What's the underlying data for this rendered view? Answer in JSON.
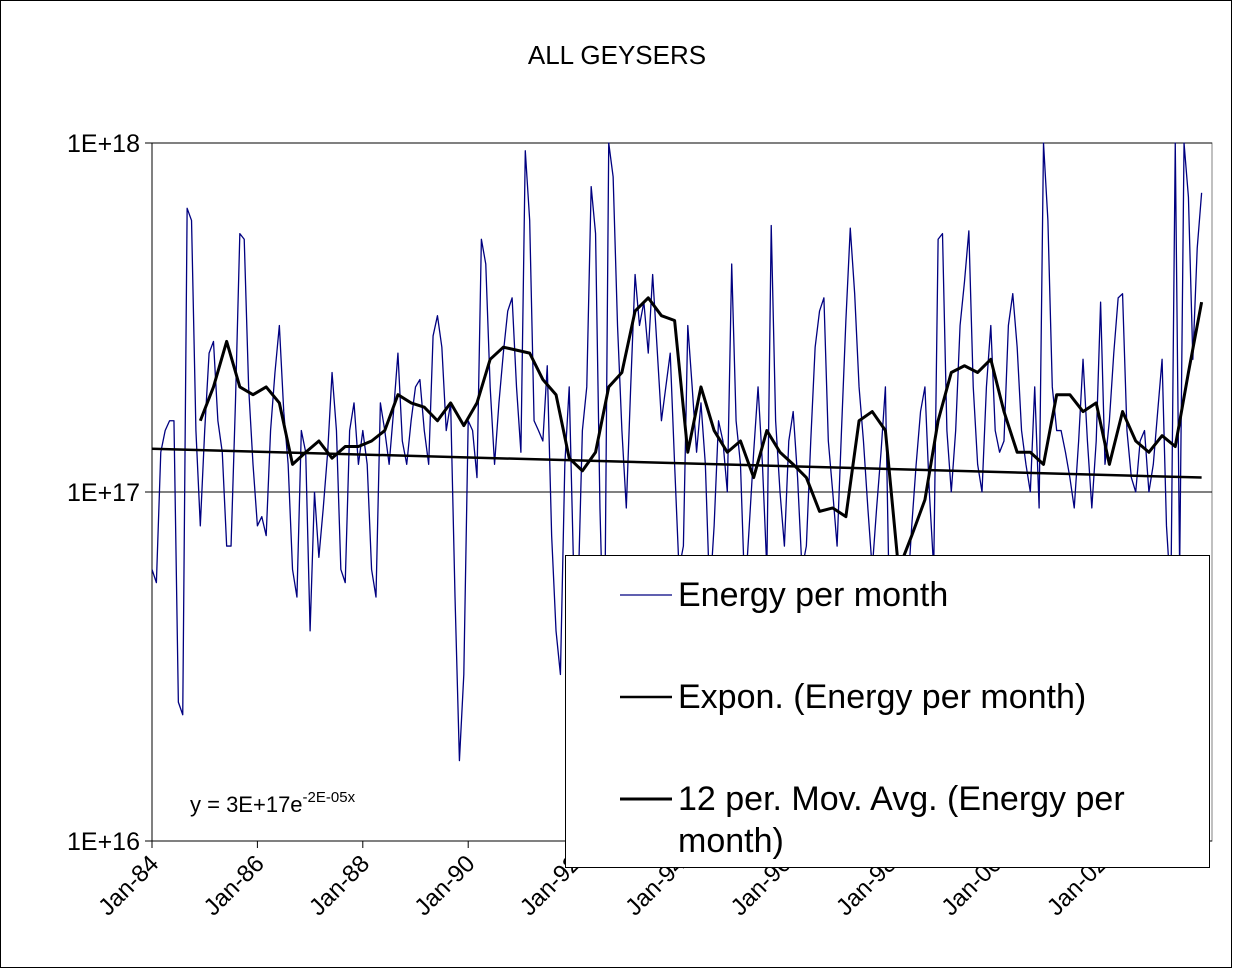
{
  "chart_data": {
    "type": "line",
    "title": "ALL GEYSERS",
    "log_scale": true,
    "grid": true,
    "ylim": [
      1e+16,
      1e+18
    ],
    "yticks": [
      {
        "value": 1e+16,
        "label": "1E+16"
      },
      {
        "value": 1e+17,
        "label": "1E+17"
      },
      {
        "value": 1e+18,
        "label": "1E+18"
      }
    ],
    "xlim": [
      "1984-01",
      "2004-01"
    ],
    "xticks": [
      {
        "value": "1984-01",
        "label": "Jan-84"
      },
      {
        "value": "1986-01",
        "label": "Jan-86"
      },
      {
        "value": "1988-01",
        "label": "Jan-88"
      },
      {
        "value": "1990-01",
        "label": "Jan-90"
      },
      {
        "value": "1992-01",
        "label": "Jan-92"
      },
      {
        "value": "1994-01",
        "label": "Jan-94"
      },
      {
        "value": "1996-01",
        "label": "Jan-96"
      },
      {
        "value": "1998-01",
        "label": "Jan-98"
      },
      {
        "value": "2000-01",
        "label": "Jan-00"
      },
      {
        "value": "2002-01",
        "label": "Jan-02"
      }
    ],
    "equation": {
      "base": "y = 3E+17e",
      "exponent": "-2E-05x"
    },
    "legend": "bottom-right",
    "series": [
      {
        "name": "Energy per month",
        "color": "#000080",
        "x": [
          "1984-01",
          "1984-02",
          "1984-03",
          "1984-04",
          "1984-05",
          "1984-06",
          "1984-07",
          "1984-08",
          "1984-09",
          "1984-10",
          "1984-11",
          "1984-12",
          "1985-01",
          "1985-02",
          "1985-03",
          "1985-04",
          "1985-05",
          "1985-06",
          "1985-07",
          "1985-08",
          "1985-09",
          "1985-10",
          "1985-11",
          "1985-12",
          "1986-01",
          "1986-02",
          "1986-03",
          "1986-04",
          "1986-05",
          "1986-06",
          "1986-07",
          "1986-08",
          "1986-09",
          "1986-10",
          "1986-11",
          "1986-12",
          "1987-01",
          "1987-02",
          "1987-03",
          "1987-04",
          "1987-05",
          "1987-06",
          "1987-07",
          "1987-08",
          "1987-09",
          "1987-10",
          "1987-11",
          "1987-12",
          "1988-01",
          "1988-02",
          "1988-03",
          "1988-04",
          "1988-05",
          "1988-06",
          "1988-07",
          "1988-08",
          "1988-09",
          "1988-10",
          "1988-11",
          "1988-12",
          "1989-01",
          "1989-02",
          "1989-03",
          "1989-04",
          "1989-05",
          "1989-06",
          "1989-07",
          "1989-08",
          "1989-09",
          "1989-10",
          "1989-11",
          "1989-12",
          "1990-01",
          "1990-02",
          "1990-03",
          "1990-04",
          "1990-05",
          "1990-06",
          "1990-07",
          "1990-08",
          "1990-09",
          "1990-10",
          "1990-11",
          "1990-12",
          "1991-01",
          "1991-02",
          "1991-03",
          "1991-04",
          "1991-05",
          "1991-06",
          "1991-07",
          "1991-08",
          "1991-09",
          "1991-10",
          "1991-11",
          "1991-12",
          "1992-01",
          "1992-02",
          "1992-03",
          "1992-04",
          "1992-05",
          "1992-06",
          "1992-07",
          "1992-08",
          "1992-09",
          "1992-10",
          "1992-11",
          "1992-12",
          "1993-01",
          "1993-02",
          "1993-03",
          "1993-04",
          "1993-05",
          "1993-06",
          "1993-07",
          "1993-08",
          "1993-09",
          "1993-10",
          "1993-11",
          "1993-12",
          "1994-01",
          "1994-02",
          "1994-03",
          "1994-04",
          "1994-05",
          "1994-06",
          "1994-07",
          "1994-08",
          "1994-09",
          "1994-10",
          "1994-11",
          "1994-12",
          "1995-01",
          "1995-02",
          "1995-03",
          "1995-04",
          "1995-05",
          "1995-06",
          "1995-07",
          "1995-08",
          "1995-09",
          "1995-10",
          "1995-11",
          "1995-12",
          "1996-01",
          "1996-02",
          "1996-03",
          "1996-04",
          "1996-05",
          "1996-06",
          "1996-07",
          "1996-08",
          "1996-09",
          "1996-10",
          "1996-11",
          "1996-12",
          "1997-01",
          "1997-02",
          "1997-03",
          "1997-04",
          "1997-05",
          "1997-06",
          "1997-07",
          "1997-08",
          "1997-09",
          "1997-10",
          "1997-11",
          "1997-12",
          "1998-01",
          "1998-02",
          "1998-03",
          "1998-04",
          "1998-05",
          "1998-06",
          "1998-07",
          "1998-08",
          "1998-09",
          "1998-10",
          "1998-11",
          "1998-12",
          "1999-01",
          "1999-02",
          "1999-03",
          "1999-04",
          "1999-05",
          "1999-06",
          "1999-07",
          "1999-08",
          "1999-09",
          "1999-10",
          "1999-11",
          "1999-12",
          "2000-01",
          "2000-02",
          "2000-03",
          "2000-04",
          "2000-05",
          "2000-06",
          "2000-07",
          "2000-08",
          "2000-09",
          "2000-10",
          "2000-11",
          "2000-12",
          "2001-01",
          "2001-02",
          "2001-03",
          "2001-04",
          "2001-05",
          "2001-06",
          "2001-07",
          "2001-08",
          "2001-09",
          "2001-10",
          "2001-11",
          "2001-12",
          "2002-01",
          "2002-02",
          "2002-03",
          "2002-04",
          "2002-05",
          "2002-06",
          "2002-07",
          "2002-08",
          "2002-09",
          "2002-10",
          "2002-11",
          "2002-12",
          "2003-01",
          "2003-02",
          "2003-03",
          "2003-04",
          "2003-05",
          "2003-06",
          "2003-07",
          "2003-08",
          "2003-09",
          "2003-10",
          "2003-11",
          "2003-12"
        ],
        "values": [
          6e+16,
          5.5e+16,
          1.3e+17,
          1.5e+17,
          1.6e+17,
          1.6e+17,
          2.5e+16,
          2.3e+16,
          6.5e+17,
          6e+17,
          1.5e+17,
          8e+16,
          1.5e+17,
          2.5e+17,
          2.7e+17,
          1.6e+17,
          1.3e+17,
          7e+16,
          7e+16,
          1.8e+17,
          5.5e+17,
          5.3e+17,
          2e+17,
          1.2e+17,
          8e+16,
          8.5e+16,
          7.5e+16,
          1.5e+17,
          2.2e+17,
          3e+17,
          1.7e+17,
          1.2e+17,
          6e+16,
          5e+16,
          1.5e+17,
          1.3e+17,
          4e+16,
          1e+17,
          6.5e+16,
          9e+16,
          1.3e+17,
          2.2e+17,
          1.5e+17,
          6e+16,
          5.5e+16,
          1.5e+17,
          1.8e+17,
          1.2e+17,
          1.5e+17,
          1.2e+17,
          6e+16,
          5e+16,
          1.8e+17,
          1.5e+17,
          1.2e+17,
          1.7e+17,
          2.5e+17,
          1.4e+17,
          1.2e+17,
          1.6e+17,
          2e+17,
          2.1e+17,
          1.5e+17,
          1.2e+17,
          2.8e+17,
          3.2e+17,
          2.6e+17,
          1.5e+17,
          1.8e+17,
          5e+16,
          1.7e+16,
          3e+16,
          1.6e+17,
          1.5e+17,
          1.1e+17,
          5.3e+17,
          4.5e+17,
          2e+17,
          1.2e+17,
          1.8e+17,
          2.5e+17,
          3.3e+17,
          3.6e+17,
          2e+17,
          1.3e+17,
          9.5e+17,
          6e+17,
          1.6e+17,
          1.5e+17,
          1.4e+17,
          2.3e+17,
          7.5e+16,
          4e+16,
          3e+16,
          1.2e+17,
          2e+17,
          6e+16,
          5e+16,
          1.5e+17,
          2e+17,
          7.5e+17,
          5.5e+17,
          9e+16,
          3e+16,
          1e+18,
          8e+17,
          3e+17,
          1.5e+17,
          9e+16,
          2e+17,
          4.2e+17,
          3e+17,
          3.5e+17,
          2.5e+17,
          4.2e+17,
          2.6e+17,
          1.6e+17,
          2e+17,
          2.5e+17,
          1.2e+17,
          6e+16,
          7e+16,
          3e+17,
          2e+17,
          1.3e+17,
          1.8e+17,
          1.2e+17,
          5e+16,
          8e+16,
          1.6e+17,
          1.4e+17,
          1e+17,
          4.5e+17,
          1.6e+17,
          1.2e+17,
          5e+16,
          8e+16,
          1.3e+17,
          2e+17,
          1.2e+17,
          6e+16,
          5.8e+17,
          1.6e+17,
          1e+17,
          7e+16,
          1.4e+17,
          1.7e+17,
          1.1e+17,
          6e+16,
          7e+16,
          1.4e+17,
          2.6e+17,
          3.3e+17,
          3.6e+17,
          1.4e+17,
          1e+17,
          7e+16,
          1.5e+17,
          3.1e+17,
          5.7e+17,
          3.7e+17,
          2e+17,
          1.4e+17,
          9e+16,
          6e+16,
          9e+16,
          1.3e+17,
          2e+17,
          4e+16,
          3e+16,
          4e+16,
          2.5e+16,
          5e+16,
          8e+16,
          1.2e+17,
          1.7e+17,
          2e+17,
          1e+17,
          6e+16,
          5.3e+17,
          5.5e+17,
          1.5e+17,
          1e+17,
          1.5e+17,
          3e+17,
          4e+17,
          5.6e+17,
          2e+17,
          1.2e+17,
          1e+17,
          2e+17,
          3e+17,
          1.5e+17,
          1.3e+17,
          1.4e+17,
          3e+17,
          3.7e+17,
          2.6e+17,
          1.5e+17,
          1.2e+17,
          1e+17,
          2e+17,
          9e+16,
          1e+18,
          6e+17,
          2e+17,
          1.5e+17,
          1.5e+17,
          1.3e+17,
          1.1e+17,
          9e+16,
          1.4e+17,
          2.4e+17,
          1.4e+17,
          9e+16,
          1.4e+17,
          3.5e+17,
          1.2e+17,
          1.6e+17,
          2.5e+17,
          3.6e+17,
          3.7e+17,
          1.5e+17,
          1.1e+17,
          1e+17,
          1.4e+17,
          1.5e+17,
          1e+17,
          1.2e+17,
          1.7e+17,
          2.4e+17,
          8e+16,
          5e+16,
          1e+18,
          6e+16,
          1e+18,
          7e+17,
          2.4e+17,
          5e+17,
          7.2e+17
        ]
      },
      {
        "name": "Expon. (Energy per month)",
        "color": "#000000",
        "x": [
          "1984-01",
          "2003-12"
        ],
        "values": [
          1.33e+17,
          1.1e+17
        ]
      },
      {
        "name": "12 per. Mov. Avg. (Energy per month)",
        "color": "#000000",
        "x": [
          "1984-12",
          "1985-03",
          "1985-06",
          "1985-09",
          "1985-12",
          "1986-03",
          "1986-06",
          "1986-09",
          "1986-12",
          "1987-03",
          "1987-06",
          "1987-09",
          "1987-12",
          "1988-03",
          "1988-06",
          "1988-09",
          "1988-12",
          "1989-03",
          "1989-06",
          "1989-09",
          "1989-12",
          "1990-03",
          "1990-06",
          "1990-09",
          "1990-12",
          "1991-03",
          "1991-06",
          "1991-09",
          "1991-12",
          "1992-03",
          "1992-06",
          "1992-09",
          "1992-12",
          "1993-03",
          "1993-06",
          "1993-09",
          "1993-12",
          "1994-03",
          "1994-06",
          "1994-09",
          "1994-12",
          "1995-03",
          "1995-06",
          "1995-09",
          "1995-12",
          "1996-03",
          "1996-06",
          "1996-09",
          "1996-12",
          "1997-03",
          "1997-06",
          "1997-09",
          "1997-12",
          "1998-03",
          "1998-06",
          "1998-09",
          "1998-12",
          "1999-03",
          "1999-06",
          "1999-09",
          "1999-12",
          "2000-03",
          "2000-06",
          "2000-09",
          "2000-12",
          "2001-03",
          "2001-06",
          "2001-09",
          "2001-12",
          "2002-03",
          "2002-06",
          "2002-09",
          "2002-12",
          "2003-03",
          "2003-06",
          "2003-09",
          "2003-12"
        ],
        "values": [
          1.6e+17,
          2e+17,
          2.7e+17,
          2e+17,
          1.9e+17,
          2e+17,
          1.8e+17,
          1.2e+17,
          1.3e+17,
          1.4e+17,
          1.25e+17,
          1.35e+17,
          1.35e+17,
          1.4e+17,
          1.5e+17,
          1.9e+17,
          1.8e+17,
          1.75e+17,
          1.6e+17,
          1.8e+17,
          1.55e+17,
          1.8e+17,
          2.4e+17,
          2.6e+17,
          2.55e+17,
          2.5e+17,
          2.1e+17,
          1.9e+17,
          1.25e+17,
          1.15e+17,
          1.3e+17,
          2e+17,
          2.2e+17,
          3.3e+17,
          3.6e+17,
          3.2e+17,
          3.1e+17,
          1.3e+17,
          2e+17,
          1.5e+17,
          1.3e+17,
          1.4e+17,
          1.1e+17,
          1.5e+17,
          1.3e+17,
          1.2e+17,
          1.1e+17,
          8.8e+16,
          9e+16,
          8.5e+16,
          1.6e+17,
          1.7e+17,
          1.5e+17,
          6e+16,
          7.5e+16,
          9.5e+16,
          1.6e+17,
          2.2e+17,
          2.3e+17,
          2.2e+17,
          2.4e+17,
          1.7e+17,
          1.3e+17,
          1.3e+17,
          1.2e+17,
          1.9e+17,
          1.9e+17,
          1.7e+17,
          1.8e+17,
          1.2e+17,
          1.7e+17,
          1.4e+17,
          1.3e+17,
          1.45e+17,
          1.35e+17,
          2.2e+17,
          3.5e+17
        ]
      }
    ]
  }
}
